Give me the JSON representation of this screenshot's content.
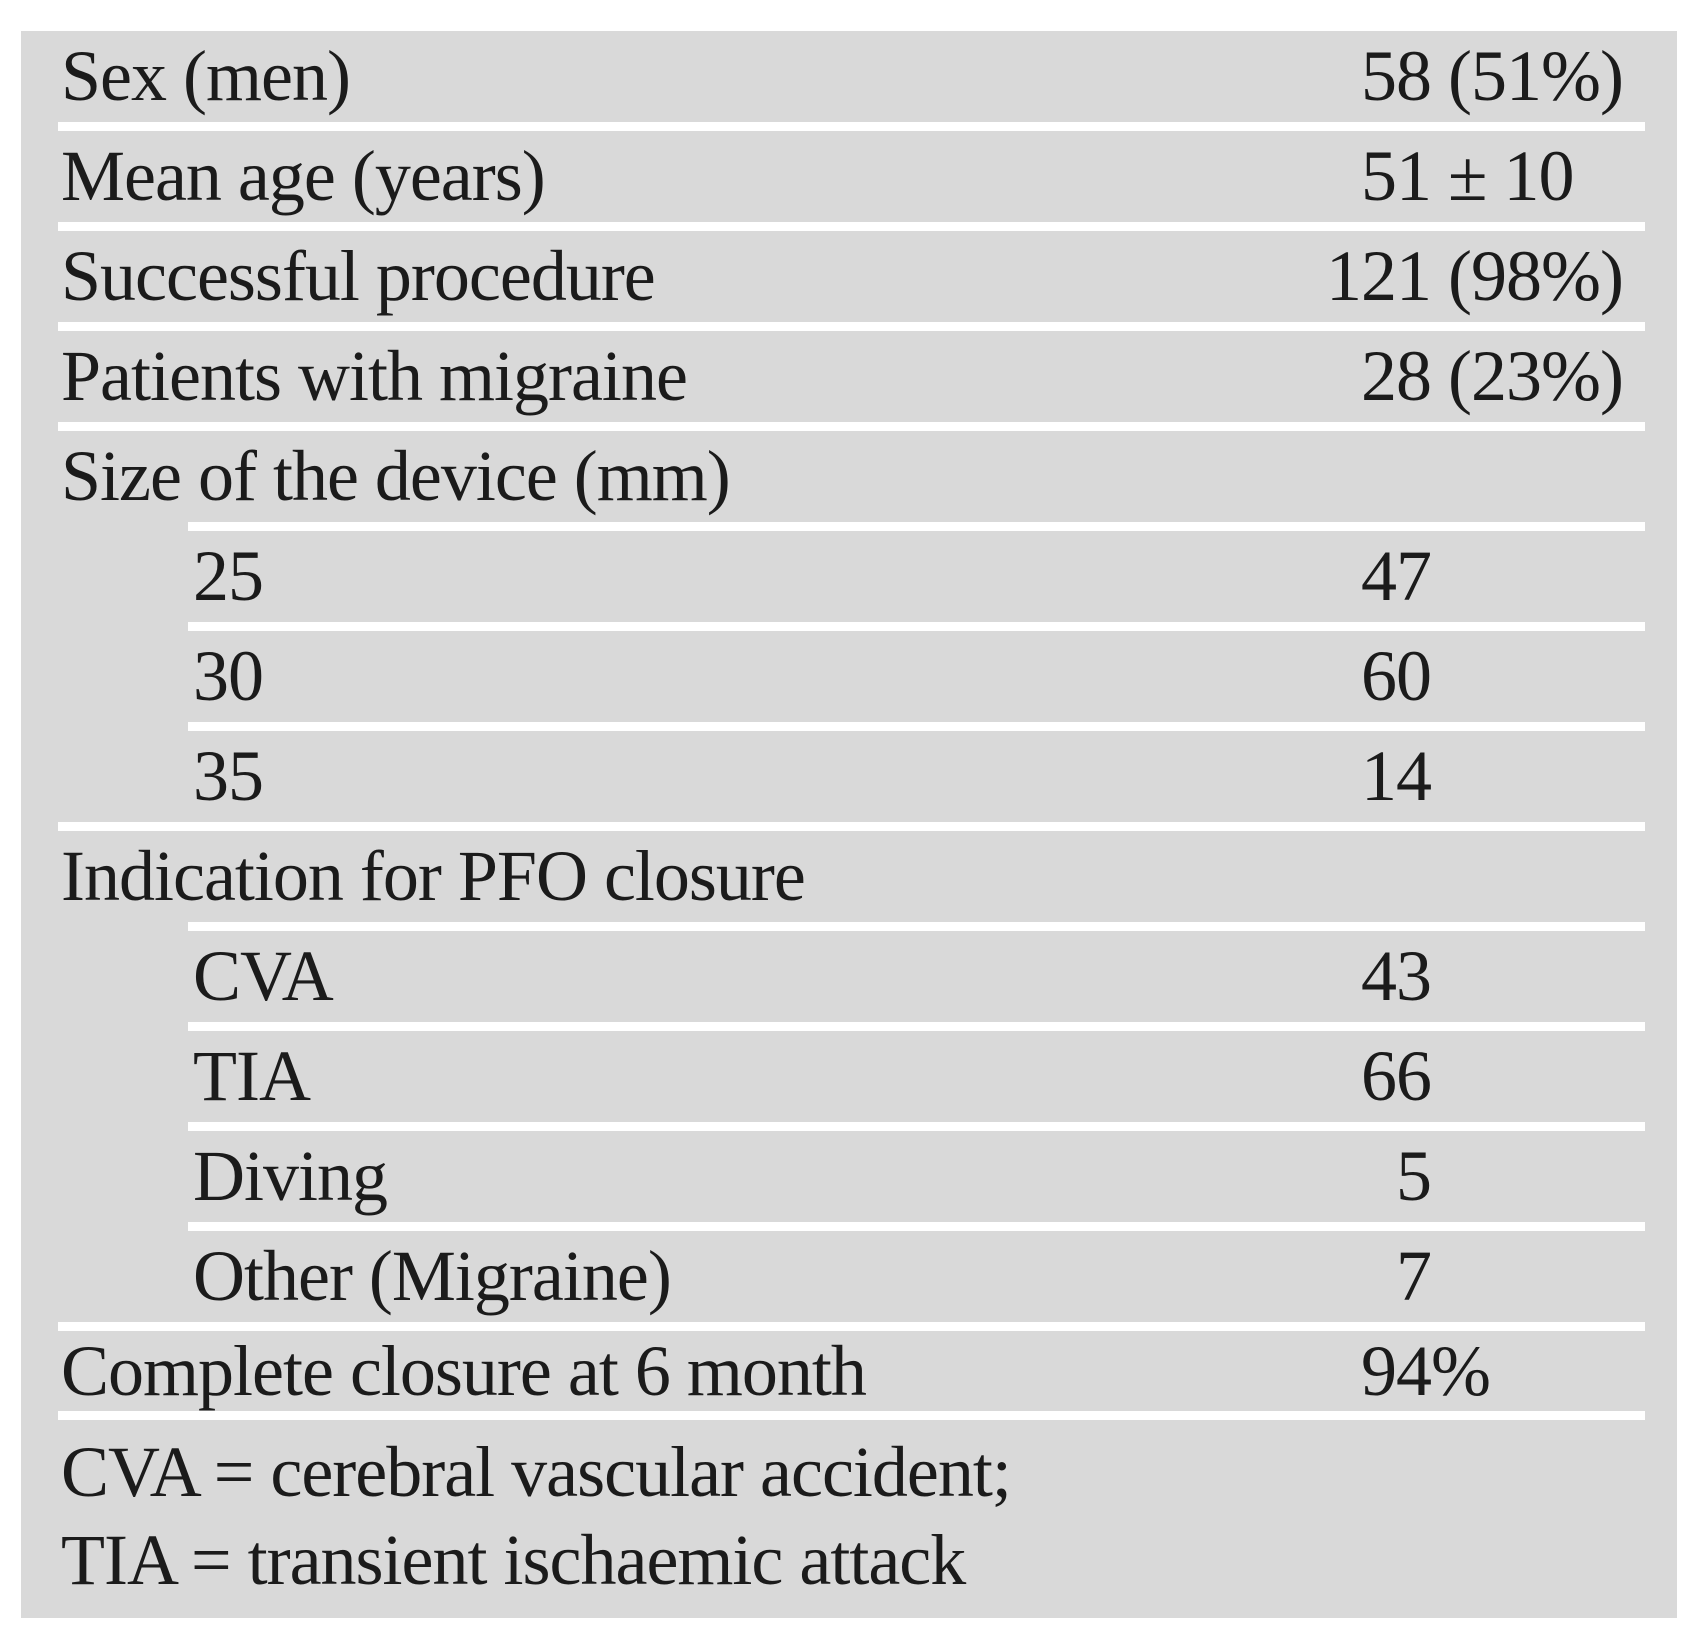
{
  "colors": {
    "panel_bg": "#d9d9d9",
    "separator": "#ffffff",
    "text": "#1b1b1b",
    "page_bg": "#ffffff"
  },
  "table": {
    "rows": [
      {
        "label": "Sex (men)",
        "num": "58",
        "suffix": " (51%)",
        "indent": false,
        "header": false,
        "sep": "full",
        "short": false
      },
      {
        "label": "Mean age (years)",
        "num": "51",
        "suffix": " ± 10",
        "indent": false,
        "header": false,
        "sep": "full",
        "short": false
      },
      {
        "label": "Successful procedure",
        "num": "121",
        "suffix": " (98%)",
        "indent": false,
        "header": false,
        "sep": "full",
        "short": false
      },
      {
        "label": "Patients with migraine",
        "num": "28",
        "suffix": " (23%)",
        "indent": false,
        "header": false,
        "sep": "full",
        "short": false
      },
      {
        "label": "Size of the device (mm)",
        "num": "",
        "suffix": "",
        "indent": false,
        "header": true,
        "sep": "indent",
        "short": false
      },
      {
        "label": "25",
        "num": "47",
        "suffix": "",
        "indent": true,
        "header": false,
        "sep": "indent",
        "short": false
      },
      {
        "label": "30",
        "num": "60",
        "suffix": "",
        "indent": true,
        "header": false,
        "sep": "indent",
        "short": false
      },
      {
        "label": "35",
        "num": "14",
        "suffix": "",
        "indent": true,
        "header": false,
        "sep": "full",
        "short": false
      },
      {
        "label": "Indication for PFO closure",
        "num": "",
        "suffix": "",
        "indent": false,
        "header": true,
        "sep": "indent",
        "short": false
      },
      {
        "label": "CVA",
        "num": "43",
        "suffix": "",
        "indent": true,
        "header": false,
        "sep": "indent",
        "short": false
      },
      {
        "label": "TIA",
        "num": "66",
        "suffix": "",
        "indent": true,
        "header": false,
        "sep": "indent",
        "short": false
      },
      {
        "label": "Diving",
        "num": "5",
        "suffix": "",
        "indent": true,
        "header": false,
        "sep": "indent",
        "short": false
      },
      {
        "label": "Other (Migraine)",
        "num": "7",
        "suffix": "",
        "indent": true,
        "header": false,
        "sep": "full",
        "short": false
      },
      {
        "label": "Complete closure at 6 month",
        "num": "94",
        "suffix": "%",
        "indent": false,
        "header": false,
        "sep": "full",
        "short": true
      }
    ],
    "footnotes": [
      "CVA = cerebral vascular accident;",
      "TIA = transient ischaemic attack"
    ]
  }
}
